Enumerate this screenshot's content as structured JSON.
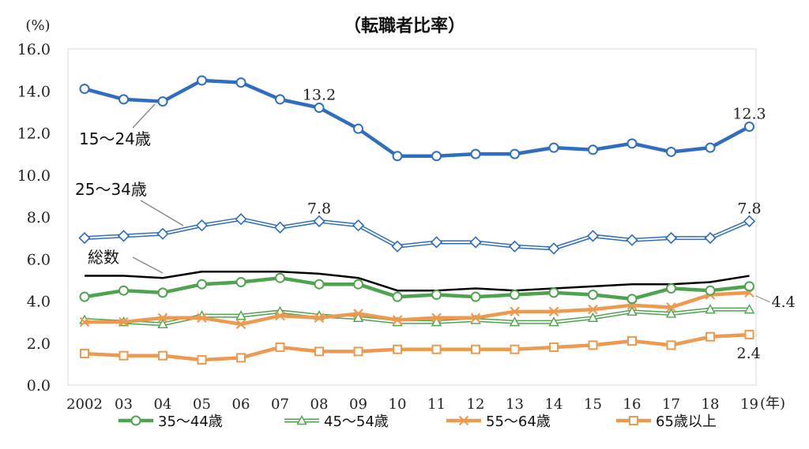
{
  "chart_data": {
    "type": "line",
    "title": "（転職者比率）",
    "y_unit": "(%)",
    "x_unit": "(年)",
    "ylim": [
      0,
      16
    ],
    "yticks": [
      "0.0",
      "2.0",
      "4.0",
      "6.0",
      "8.0",
      "10.0",
      "12.0",
      "14.0",
      "16.0"
    ],
    "ytick_values": [
      0,
      2,
      4,
      6,
      8,
      10,
      12,
      14,
      16
    ],
    "categories": [
      "2002",
      "03",
      "04",
      "05",
      "06",
      "07",
      "08",
      "09",
      "10",
      "11",
      "12",
      "13",
      "14",
      "15",
      "16",
      "17",
      "18",
      "19"
    ],
    "grid": false,
    "legend_position": "bottom",
    "series": [
      {
        "key": "s15",
        "name": "15～24歳",
        "color": "#2e6dbf",
        "marker": "circle",
        "style": "solid-thick",
        "values": [
          14.1,
          13.6,
          13.5,
          14.5,
          14.4,
          13.6,
          13.2,
          12.2,
          10.9,
          10.9,
          11.0,
          11.0,
          11.3,
          11.2,
          11.5,
          11.1,
          11.3,
          12.3
        ]
      },
      {
        "key": "s25",
        "name": "25～34歳",
        "color": "#2e6dbf",
        "marker": "diamond",
        "style": "double",
        "values": [
          7.0,
          7.1,
          7.2,
          7.6,
          7.9,
          7.5,
          7.8,
          7.6,
          6.6,
          6.8,
          6.8,
          6.6,
          6.5,
          7.1,
          6.9,
          7.0,
          7.0,
          7.8
        ]
      },
      {
        "key": "total",
        "name": "総数",
        "color": "#000000",
        "marker": "none",
        "style": "solid",
        "values": [
          5.2,
          5.2,
          5.1,
          5.4,
          5.4,
          5.4,
          5.3,
          5.1,
          4.5,
          4.5,
          4.6,
          4.5,
          4.6,
          4.7,
          4.8,
          4.8,
          4.9,
          5.2
        ]
      },
      {
        "key": "s35",
        "name": "35～44歳",
        "color": "#4ea34e",
        "marker": "circle",
        "style": "solid-thick",
        "values": [
          4.2,
          4.5,
          4.4,
          4.8,
          4.9,
          5.1,
          4.8,
          4.8,
          4.2,
          4.3,
          4.2,
          4.3,
          4.4,
          4.3,
          4.1,
          4.6,
          4.5,
          4.7
        ]
      },
      {
        "key": "s45",
        "name": "45～54歳",
        "color": "#4ea34e",
        "marker": "triangle",
        "style": "double",
        "values": [
          3.1,
          3.0,
          2.9,
          3.3,
          3.3,
          3.5,
          3.3,
          3.2,
          3.0,
          3.0,
          3.1,
          3.0,
          3.0,
          3.2,
          3.5,
          3.4,
          3.6,
          3.6
        ]
      },
      {
        "key": "s55",
        "name": "55～64歳",
        "color": "#ed9a50",
        "marker": "x",
        "style": "solid-thick",
        "values": [
          3.0,
          3.0,
          3.2,
          3.2,
          2.9,
          3.3,
          3.2,
          3.4,
          3.1,
          3.2,
          3.2,
          3.5,
          3.5,
          3.6,
          3.8,
          3.7,
          4.3,
          4.4
        ]
      },
      {
        "key": "s65",
        "name": "65歳以上",
        "color": "#ed9a50",
        "marker": "square",
        "style": "solid-thick",
        "values": [
          1.5,
          1.4,
          1.4,
          1.2,
          1.3,
          1.8,
          1.6,
          1.6,
          1.7,
          1.7,
          1.7,
          1.7,
          1.8,
          1.9,
          2.1,
          1.9,
          2.3,
          2.4
        ]
      }
    ],
    "annotations": [
      {
        "text": "13.2",
        "series": "s15",
        "index": 6
      },
      {
        "text": "12.3",
        "series": "s15",
        "index": 17
      },
      {
        "text": "7.8",
        "series": "s25",
        "index": 6
      },
      {
        "text": "7.8",
        "series": "s25",
        "index": 17
      },
      {
        "text": "4.4",
        "series": "s55",
        "index": 17
      },
      {
        "text": "2.4",
        "series": "s65",
        "index": 17
      }
    ],
    "callout_labels": [
      {
        "text": "15～24歳",
        "series": "s15"
      },
      {
        "text": "25～34歳",
        "series": "s25"
      },
      {
        "text": "総数",
        "series": "total"
      }
    ],
    "legend_series": [
      "s35",
      "s45",
      "s55",
      "s65"
    ]
  }
}
